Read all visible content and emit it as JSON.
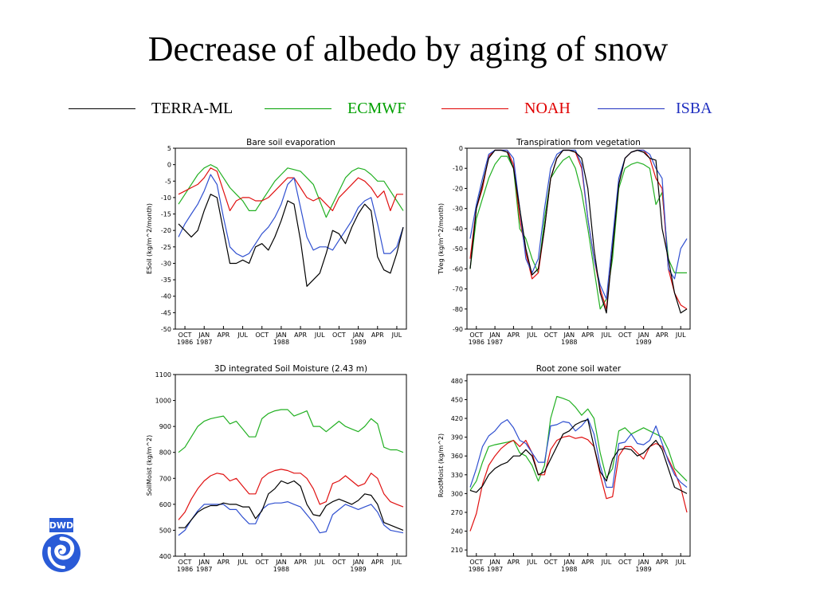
{
  "page": {
    "title": "Decrease of albedo by aging of snow",
    "legend": [
      {
        "name": "TERRA-ML",
        "color": "#000000"
      },
      {
        "name": "ECMWF",
        "color": "#00a000"
      },
      {
        "name": "NOAH",
        "color": "#e00000"
      },
      {
        "name": "ISBA",
        "color": "#2030c0"
      }
    ],
    "logo_text": "DWD"
  },
  "colors": {
    "TERRA-ML": "#000000",
    "ECMWF": "#22b022",
    "NOAH": "#e01010",
    "ISBA": "#3050d0"
  },
  "x_ticks": {
    "month_labels": [
      "OCT",
      "JAN",
      "APR",
      "JUL",
      "OCT",
      "JAN",
      "APR",
      "JUL",
      "OCT",
      "JAN",
      "APR",
      "JUL"
    ],
    "year_labels": [
      "1986",
      "1987",
      "1988",
      "1989"
    ]
  },
  "chart_data": [
    {
      "type": "line",
      "title": "Bare soil evaporation",
      "ylabel": "ESoil (kg/m^2/month)",
      "xlabel": "",
      "ylim": [
        -50,
        5
      ],
      "yticks": [
        5,
        0,
        -5,
        -10,
        -15,
        -20,
        -25,
        -30,
        -35,
        -40,
        -45,
        -50
      ],
      "x_month_index": [
        0,
        1,
        2,
        3,
        4,
        5,
        6,
        7,
        8,
        9,
        10,
        11,
        12,
        13,
        14,
        15,
        16,
        17,
        18,
        19,
        20,
        21,
        22,
        23,
        24,
        25,
        26,
        27,
        28,
        29,
        30,
        31,
        32,
        33,
        34,
        35
      ],
      "series": [
        {
          "name": "TERRA-ML",
          "values": [
            -18,
            -20,
            -22,
            -20,
            -14,
            -9,
            -10,
            -20,
            -30,
            -30,
            -29,
            -30,
            -25,
            -24,
            -26,
            -22,
            -17,
            -11,
            -12,
            -23,
            -37,
            -35,
            -33,
            -27,
            -20,
            -21,
            -24,
            -19,
            -15,
            -12,
            -14,
            -28,
            -32,
            -33,
            -27,
            -19
          ]
        },
        {
          "name": "ECMWF",
          "values": [
            -12,
            -9,
            -6,
            -3,
            -1,
            0,
            -1,
            -4,
            -7,
            -9,
            -11,
            -14,
            -14,
            -11,
            -8,
            -5,
            -3,
            -1,
            -1.5,
            -2,
            -4,
            -6,
            -11,
            -16,
            -12,
            -8,
            -4,
            -2,
            -1,
            -1.5,
            -3,
            -5,
            -5,
            -8,
            -11,
            -14
          ]
        },
        {
          "name": "NOAH",
          "values": [
            -9,
            -8,
            -7,
            -6,
            -4,
            -1,
            -2,
            -8,
            -14,
            -11,
            -10,
            -10,
            -11,
            -11,
            -10,
            -8,
            -6,
            -4,
            -4,
            -7,
            -10,
            -11,
            -10,
            -12,
            -14,
            -10,
            -8,
            -6,
            -4,
            -5,
            -7,
            -10,
            -8,
            -14,
            -9,
            -9
          ]
        },
        {
          "name": "ISBA",
          "values": [
            -22,
            -18,
            -15,
            -12,
            -8,
            -3,
            -6,
            -16,
            -25,
            -27,
            -28,
            -27,
            -24,
            -21,
            -19,
            -16,
            -12,
            -6,
            -4,
            -13,
            -22,
            -26,
            -25,
            -25,
            -26,
            -23,
            -20,
            -17,
            -13,
            -11,
            -10,
            -18,
            -27,
            -27,
            -25,
            -19
          ]
        }
      ]
    },
    {
      "type": "line",
      "title": "Transpiration from vegetation",
      "ylabel": "TVeg (kg/m^2/month)",
      "xlabel": "",
      "ylim": [
        -90,
        0
      ],
      "yticks": [
        0,
        -10,
        -20,
        -30,
        -40,
        -50,
        -60,
        -70,
        -80,
        -90
      ],
      "x_month_index": [
        0,
        1,
        2,
        3,
        4,
        5,
        6,
        7,
        8,
        9,
        10,
        11,
        12,
        13,
        14,
        15,
        16,
        17,
        18,
        19,
        20,
        21,
        22,
        23,
        24,
        25,
        26,
        27,
        28,
        29,
        30,
        31,
        32,
        33,
        34,
        35
      ],
      "series": [
        {
          "name": "TERRA-ML",
          "values": [
            -60,
            -30,
            -18,
            -5,
            -1,
            -1,
            -2,
            -10,
            -30,
            -50,
            -63,
            -60,
            -40,
            -15,
            -5,
            -1,
            -1,
            -2,
            -5,
            -20,
            -50,
            -72,
            -82,
            -50,
            -18,
            -5,
            -2,
            -1,
            -2,
            -5,
            -6,
            -40,
            -55,
            -72,
            -82,
            -80
          ]
        },
        {
          "name": "ECMWF",
          "values": [
            -60,
            -35,
            -25,
            -15,
            -8,
            -4,
            -4,
            -10,
            -40,
            -45,
            -55,
            -62,
            -35,
            -15,
            -10,
            -6,
            -4,
            -10,
            -22,
            -40,
            -60,
            -80,
            -75,
            -55,
            -20,
            -10,
            -8,
            -7,
            -8,
            -10,
            -28,
            -22,
            -55,
            -62,
            -62,
            -62
          ]
        },
        {
          "name": "NOAH",
          "values": [
            -55,
            -30,
            -20,
            -4,
            -1,
            -1,
            -1,
            -8,
            -35,
            -52,
            -65,
            -62,
            -40,
            -15,
            -5,
            -1,
            -1,
            -2,
            -10,
            -35,
            -55,
            -70,
            -80,
            -50,
            -18,
            -5,
            -2,
            -1,
            -1,
            -5,
            -15,
            -20,
            -60,
            -72,
            -78,
            -80
          ]
        },
        {
          "name": "ISBA",
          "values": [
            -45,
            -28,
            -15,
            -3,
            -1,
            -1,
            -1,
            -5,
            -30,
            -55,
            -62,
            -55,
            -30,
            -10,
            -3,
            -1,
            -1,
            -1,
            -8,
            -35,
            -55,
            -68,
            -75,
            -45,
            -15,
            -5,
            -2,
            -1,
            -1,
            -3,
            -10,
            -15,
            -60,
            -65,
            -50,
            -45
          ]
        }
      ]
    },
    {
      "type": "line",
      "title": "3D integrated Soil Moisture (2.43  m)",
      "ylabel": "SoilMoist (kg/m^2)",
      "xlabel": "",
      "ylim": [
        400,
        1100
      ],
      "yticks": [
        1100,
        1000,
        900,
        800,
        700,
        600,
        500,
        400
      ],
      "x_month_index": [
        0,
        1,
        2,
        3,
        4,
        5,
        6,
        7,
        8,
        9,
        10,
        11,
        12,
        13,
        14,
        15,
        16,
        17,
        18,
        19,
        20,
        21,
        22,
        23,
        24,
        25,
        26,
        27,
        28,
        29,
        30,
        31,
        32,
        33,
        34,
        35
      ],
      "series": [
        {
          "name": "TERRA-ML",
          "values": [
            510,
            510,
            540,
            570,
            585,
            595,
            595,
            605,
            600,
            600,
            590,
            590,
            545,
            575,
            640,
            660,
            690,
            680,
            690,
            670,
            600,
            560,
            555,
            595,
            610,
            620,
            610,
            600,
            615,
            640,
            635,
            600,
            530,
            520,
            510,
            500
          ]
        },
        {
          "name": "ECMWF",
          "values": [
            800,
            820,
            860,
            900,
            920,
            930,
            935,
            940,
            910,
            920,
            890,
            860,
            860,
            930,
            950,
            960,
            965,
            965,
            940,
            950,
            960,
            900,
            900,
            880,
            900,
            920,
            900,
            890,
            880,
            900,
            930,
            910,
            820,
            810,
            810,
            800
          ]
        },
        {
          "name": "NOAH",
          "values": [
            540,
            570,
            620,
            660,
            690,
            710,
            720,
            715,
            690,
            700,
            670,
            640,
            640,
            700,
            720,
            730,
            735,
            730,
            720,
            720,
            700,
            660,
            600,
            610,
            680,
            690,
            710,
            690,
            670,
            680,
            720,
            700,
            640,
            610,
            600,
            590
          ]
        },
        {
          "name": "ISBA",
          "values": [
            480,
            500,
            540,
            575,
            600,
            600,
            600,
            600,
            580,
            580,
            550,
            525,
            525,
            580,
            600,
            605,
            605,
            610,
            600,
            590,
            560,
            530,
            490,
            495,
            560,
            580,
            600,
            590,
            580,
            590,
            600,
            570,
            520,
            500,
            495,
            490
          ]
        }
      ]
    },
    {
      "type": "line",
      "title": "Root zone soil water",
      "ylabel": "RootMoist (kg/m^2)",
      "xlabel": "",
      "ylim": [
        200,
        490
      ],
      "yticks": [
        480,
        450,
        420,
        390,
        360,
        330,
        300,
        270,
        240,
        210
      ],
      "x_month_index": [
        0,
        1,
        2,
        3,
        4,
        5,
        6,
        7,
        8,
        9,
        10,
        11,
        12,
        13,
        14,
        15,
        16,
        17,
        18,
        19,
        20,
        21,
        22,
        23,
        24,
        25,
        26,
        27,
        28,
        29,
        30,
        31,
        32,
        33,
        34,
        35
      ],
      "series": [
        {
          "name": "TERRA-ML",
          "values": [
            305,
            302,
            312,
            330,
            340,
            346,
            350,
            360,
            360,
            370,
            360,
            330,
            335,
            355,
            375,
            395,
            400,
            410,
            415,
            418,
            375,
            335,
            320,
            355,
            370,
            372,
            370,
            360,
            365,
            375,
            385,
            370,
            340,
            310,
            305,
            300
          ]
        },
        {
          "name": "ECMWF",
          "values": [
            305,
            320,
            350,
            375,
            378,
            380,
            382,
            385,
            365,
            360,
            345,
            320,
            345,
            420,
            455,
            452,
            448,
            438,
            425,
            435,
            420,
            365,
            325,
            340,
            400,
            405,
            395,
            400,
            405,
            400,
            395,
            390,
            370,
            340,
            330,
            320
          ]
        },
        {
          "name": "NOAH",
          "values": [
            240,
            268,
            315,
            345,
            360,
            372,
            380,
            385,
            375,
            385,
            365,
            330,
            330,
            370,
            385,
            390,
            392,
            388,
            390,
            386,
            375,
            330,
            292,
            295,
            360,
            375,
            375,
            365,
            355,
            375,
            380,
            375,
            355,
            335,
            310,
            270
          ]
        },
        {
          "name": "ISBA",
          "values": [
            310,
            340,
            375,
            392,
            400,
            412,
            418,
            405,
            385,
            380,
            365,
            350,
            350,
            408,
            410,
            415,
            413,
            400,
            408,
            420,
            395,
            345,
            310,
            310,
            380,
            382,
            395,
            380,
            378,
            385,
            408,
            380,
            352,
            330,
            318,
            310
          ]
        }
      ]
    }
  ]
}
